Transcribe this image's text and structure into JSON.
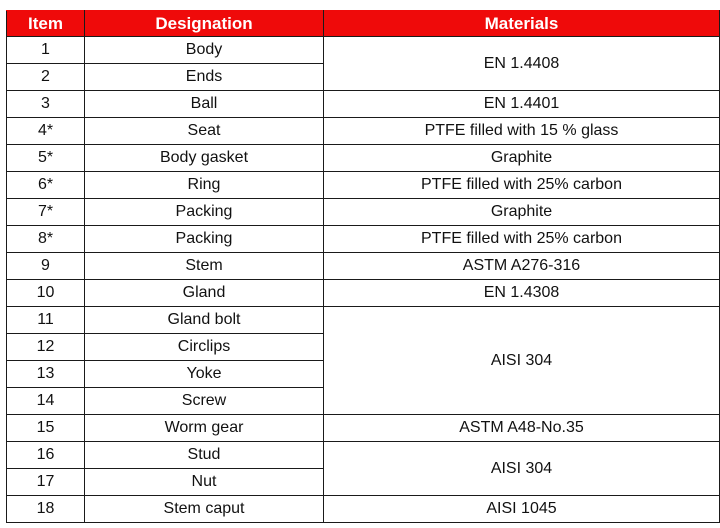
{
  "table": {
    "headers": [
      "Item",
      "Designation",
      "Materials"
    ],
    "rows": [
      {
        "item": "1",
        "designation": "Body",
        "material": "EN 1.4408",
        "rowspan": 2
      },
      {
        "item": "2",
        "designation": "Ends"
      },
      {
        "item": "3",
        "designation": "Ball",
        "material": "EN 1.4401",
        "rowspan": 1
      },
      {
        "item": "4*",
        "designation": "Seat",
        "material": "PTFE filled with 15 % glass",
        "rowspan": 1
      },
      {
        "item": "5*",
        "designation": "Body gasket",
        "material": "Graphite",
        "rowspan": 1
      },
      {
        "item": "6*",
        "designation": "Ring",
        "material": "PTFE filled with 25% carbon",
        "rowspan": 1
      },
      {
        "item": "7*",
        "designation": "Packing",
        "material": "Graphite",
        "rowspan": 1
      },
      {
        "item": "8*",
        "designation": "Packing",
        "material": "PTFE filled with 25% carbon",
        "rowspan": 1
      },
      {
        "item": "9",
        "designation": "Stem",
        "material": "ASTM A276-316",
        "rowspan": 1
      },
      {
        "item": "10",
        "designation": "Gland",
        "material": "EN 1.4308",
        "rowspan": 1
      },
      {
        "item": "11",
        "designation": "Gland bolt",
        "material": "AISI 304",
        "rowspan": 4
      },
      {
        "item": "12",
        "designation": "Circlips"
      },
      {
        "item": "13",
        "designation": "Yoke"
      },
      {
        "item": "14",
        "designation": "Screw"
      },
      {
        "item": "15",
        "designation": "Worm gear",
        "material": "ASTM A48-No.35",
        "rowspan": 1
      },
      {
        "item": "16",
        "designation": "Stud",
        "material": "AISI 304",
        "rowspan": 2
      },
      {
        "item": "17",
        "designation": "Nut"
      },
      {
        "item": "18",
        "designation": "Stem caput",
        "material": "AISI 1045",
        "rowspan": 1
      }
    ]
  },
  "colors": {
    "header_bg": "#ef0a0a",
    "header_text": "#ffffff",
    "border": "#1a1a1a"
  }
}
